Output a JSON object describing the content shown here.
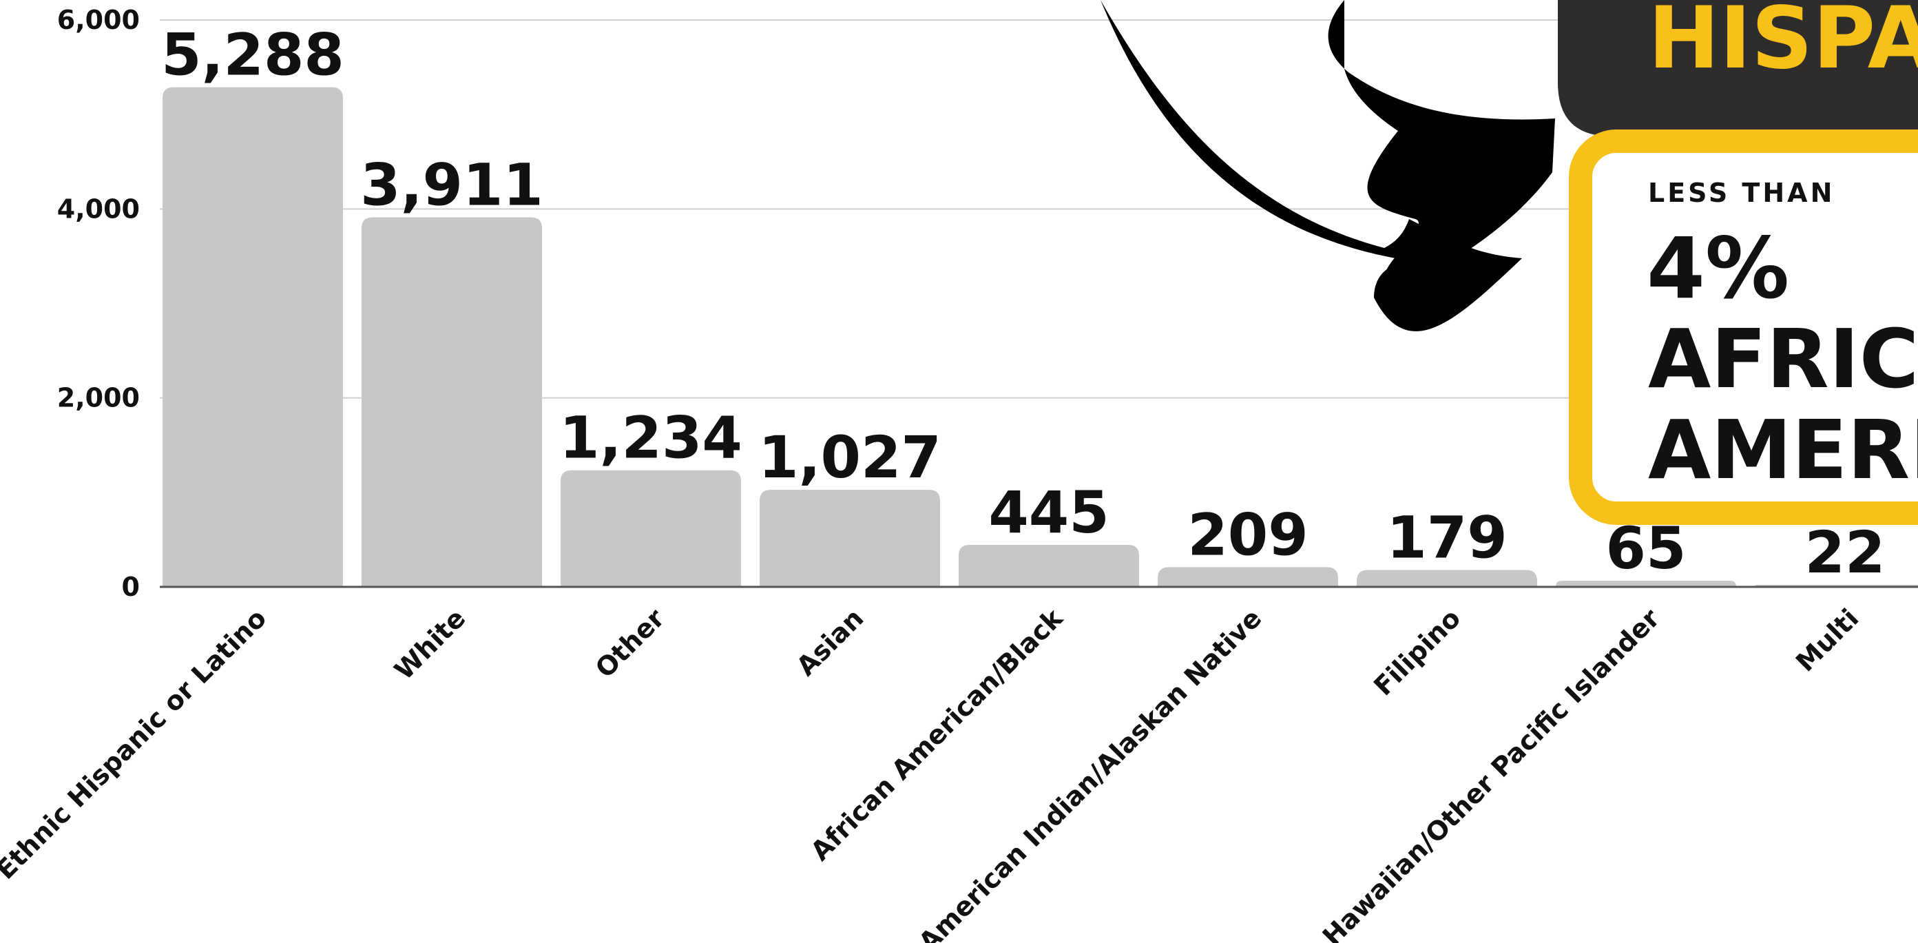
{
  "chart_data": {
    "type": "bar",
    "title": "",
    "xlabel": "",
    "ylabel": "",
    "ylim": [
      0,
      6000
    ],
    "yticks": [
      0,
      2000,
      4000,
      6000
    ],
    "ytick_labels": [
      "0",
      "2,000",
      "4,000",
      "6,000"
    ],
    "grid": true,
    "categories": [
      "Ethnic Hispanic or Latino",
      "White",
      "Other",
      "Asian",
      "African American/Black",
      "American Indian/Alaskan Native",
      "Filipino",
      "Hawaiian/Other Pacific Islander",
      "Multi"
    ],
    "values": [
      5288,
      3911,
      1234,
      1027,
      445,
      209,
      179,
      65,
      22
    ],
    "value_labels": [
      "5,288",
      "3,911",
      "1,234",
      "1,027",
      "445",
      "209",
      "179",
      "65",
      "22"
    ],
    "colors": {
      "bar": "#c8c7c8",
      "grid": "#cfcfcf",
      "axis": "#555555",
      "text": "#111111"
    }
  },
  "callouts": {
    "hispanic_box": {
      "text": "HISPA",
      "background": "#2f2d2c",
      "text_color": "#f8c11a"
    },
    "african_american_box": {
      "eyebrow": "LESS THAN",
      "percent": "4%",
      "line1": "AFRICA",
      "line2": "AMERIC",
      "border_color": "#f8c11a",
      "text_color": "#111111"
    },
    "arrow": {
      "icon": "curved-arrow-icon",
      "color": "#000000"
    }
  }
}
